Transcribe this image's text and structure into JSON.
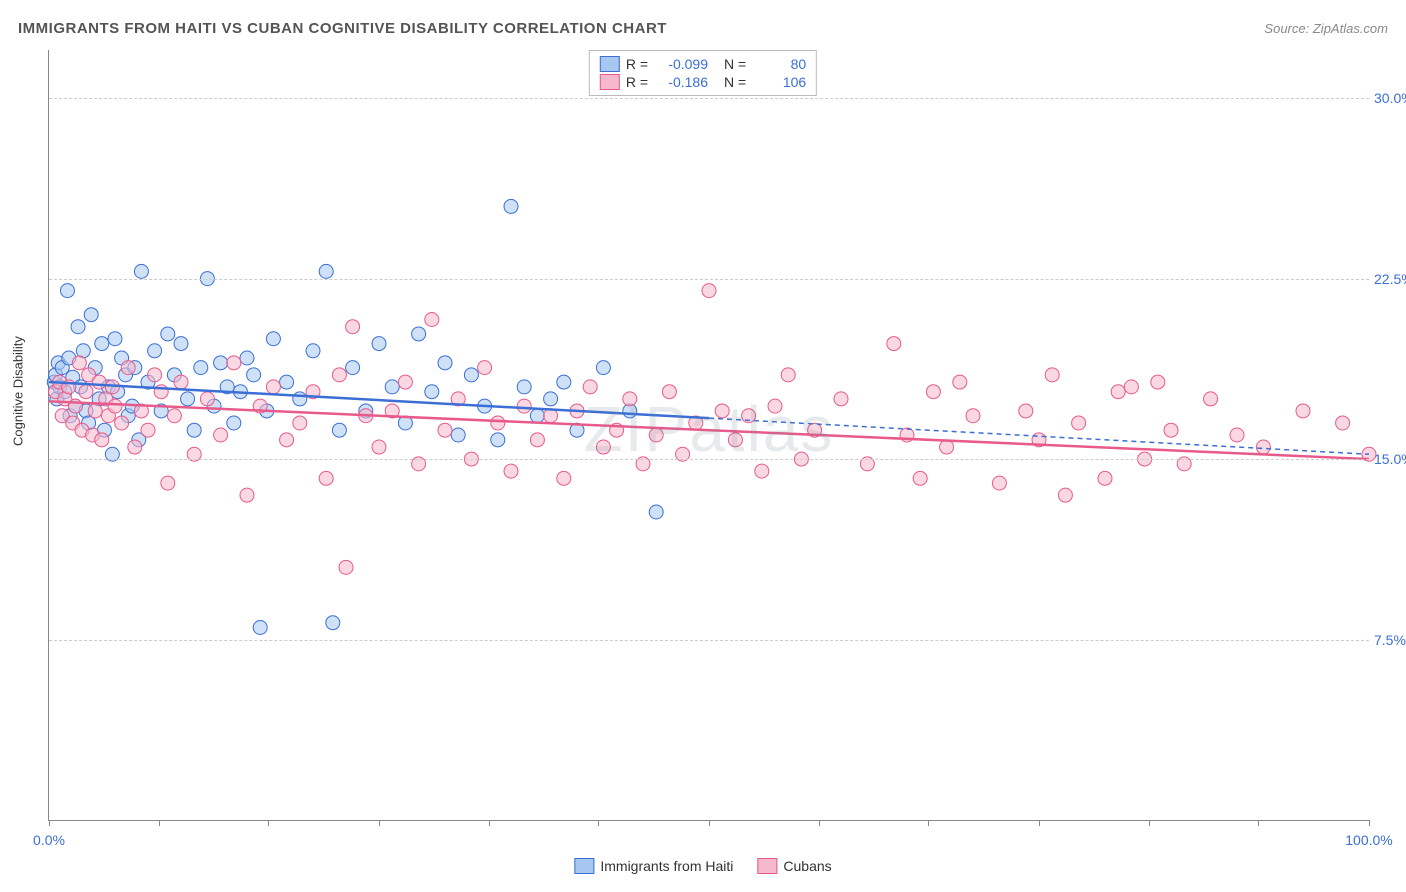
{
  "header": {
    "title": "IMMIGRANTS FROM HAITI VS CUBAN COGNITIVE DISABILITY CORRELATION CHART",
    "source_label": "Source:",
    "source_name": "ZipAtlas.com"
  },
  "watermark": "ZIPatlas",
  "chart": {
    "type": "scatter",
    "xlim": [
      0,
      100
    ],
    "ylim": [
      0,
      32
    ],
    "yticks": [
      7.5,
      15.0,
      22.5,
      30.0
    ],
    "ytick_labels": [
      "7.5%",
      "15.0%",
      "22.5%",
      "30.0%"
    ],
    "xtick_positions": [
      0,
      8.3,
      16.6,
      25,
      33.3,
      41.6,
      50,
      58.3,
      66.6,
      75,
      83.3,
      91.6,
      100
    ],
    "xaxis_end_labels": {
      "left": "0.0%",
      "right": "100.0%"
    },
    "yaxis_title": "Cognitive Disability",
    "background_color": "#ffffff",
    "grid_color": "#cccccc",
    "axis_color": "#888888",
    "label_color": "#3b6fd6",
    "marker_radius": 7,
    "marker_opacity": 0.55,
    "series": [
      {
        "name": "Immigrants from Haiti",
        "color_fill": "#a6c8f0",
        "color_stroke": "#3b6fd6",
        "R": "-0.099",
        "N": "80",
        "trend": {
          "y_at_x0": 18.2,
          "y_at_x100": 15.2,
          "solid_until_x": 50
        },
        "points": [
          [
            0.4,
            18.2
          ],
          [
            0.5,
            18.5
          ],
          [
            0.6,
            17.5
          ],
          [
            0.7,
            19.0
          ],
          [
            0.8,
            18.0
          ],
          [
            1.0,
            18.8
          ],
          [
            1.2,
            17.8
          ],
          [
            1.4,
            22.0
          ],
          [
            1.5,
            19.2
          ],
          [
            1.6,
            16.8
          ],
          [
            1.8,
            18.4
          ],
          [
            2.0,
            17.2
          ],
          [
            2.2,
            20.5
          ],
          [
            2.4,
            18.0
          ],
          [
            2.6,
            19.5
          ],
          [
            2.8,
            17.0
          ],
          [
            3.0,
            16.5
          ],
          [
            3.2,
            21.0
          ],
          [
            3.5,
            18.8
          ],
          [
            3.8,
            17.5
          ],
          [
            4.0,
            19.8
          ],
          [
            4.2,
            16.2
          ],
          [
            4.5,
            18.0
          ],
          [
            4.8,
            15.2
          ],
          [
            5.0,
            20.0
          ],
          [
            5.2,
            17.8
          ],
          [
            5.5,
            19.2
          ],
          [
            5.8,
            18.5
          ],
          [
            6.0,
            16.8
          ],
          [
            6.3,
            17.2
          ],
          [
            6.5,
            18.8
          ],
          [
            6.8,
            15.8
          ],
          [
            7.0,
            22.8
          ],
          [
            7.5,
            18.2
          ],
          [
            8.0,
            19.5
          ],
          [
            8.5,
            17.0
          ],
          [
            9.0,
            20.2
          ],
          [
            9.5,
            18.5
          ],
          [
            10.0,
            19.8
          ],
          [
            10.5,
            17.5
          ],
          [
            11.0,
            16.2
          ],
          [
            11.5,
            18.8
          ],
          [
            12.0,
            22.5
          ],
          [
            12.5,
            17.2
          ],
          [
            13.0,
            19.0
          ],
          [
            13.5,
            18.0
          ],
          [
            14.0,
            16.5
          ],
          [
            14.5,
            17.8
          ],
          [
            15.0,
            19.2
          ],
          [
            15.5,
            18.5
          ],
          [
            16.0,
            8.0
          ],
          [
            16.5,
            17.0
          ],
          [
            17.0,
            20.0
          ],
          [
            18.0,
            18.2
          ],
          [
            19.0,
            17.5
          ],
          [
            20.0,
            19.5
          ],
          [
            21.0,
            22.8
          ],
          [
            21.5,
            8.2
          ],
          [
            22.0,
            16.2
          ],
          [
            23.0,
            18.8
          ],
          [
            24.0,
            17.0
          ],
          [
            25.0,
            19.8
          ],
          [
            26.0,
            18.0
          ],
          [
            27.0,
            16.5
          ],
          [
            28.0,
            20.2
          ],
          [
            29.0,
            17.8
          ],
          [
            30.0,
            19.0
          ],
          [
            31.0,
            16.0
          ],
          [
            32.0,
            18.5
          ],
          [
            33.0,
            17.2
          ],
          [
            34.0,
            15.8
          ],
          [
            35.0,
            25.5
          ],
          [
            36.0,
            18.0
          ],
          [
            37.0,
            16.8
          ],
          [
            38.0,
            17.5
          ],
          [
            39.0,
            18.2
          ],
          [
            40.0,
            16.2
          ],
          [
            42.0,
            18.8
          ],
          [
            44.0,
            17.0
          ],
          [
            46.0,
            12.8
          ]
        ]
      },
      {
        "name": "Cubans",
        "color_fill": "#f5b8cc",
        "color_stroke": "#e85a8a",
        "R": "-0.186",
        "N": "106",
        "trend": {
          "y_at_x0": 17.4,
          "y_at_x100": 15.0,
          "solid_until_x": 100
        },
        "points": [
          [
            0.5,
            17.8
          ],
          [
            0.8,
            18.2
          ],
          [
            1.0,
            16.8
          ],
          [
            1.2,
            17.5
          ],
          [
            1.5,
            18.0
          ],
          [
            1.8,
            16.5
          ],
          [
            2.0,
            17.2
          ],
          [
            2.3,
            19.0
          ],
          [
            2.5,
            16.2
          ],
          [
            2.8,
            17.8
          ],
          [
            3.0,
            18.5
          ],
          [
            3.3,
            16.0
          ],
          [
            3.5,
            17.0
          ],
          [
            3.8,
            18.2
          ],
          [
            4.0,
            15.8
          ],
          [
            4.3,
            17.5
          ],
          [
            4.5,
            16.8
          ],
          [
            4.8,
            18.0
          ],
          [
            5.0,
            17.2
          ],
          [
            5.5,
            16.5
          ],
          [
            6.0,
            18.8
          ],
          [
            6.5,
            15.5
          ],
          [
            7.0,
            17.0
          ],
          [
            7.5,
            16.2
          ],
          [
            8.0,
            18.5
          ],
          [
            8.5,
            17.8
          ],
          [
            9.0,
            14.0
          ],
          [
            9.5,
            16.8
          ],
          [
            10.0,
            18.2
          ],
          [
            11.0,
            15.2
          ],
          [
            12.0,
            17.5
          ],
          [
            13.0,
            16.0
          ],
          [
            14.0,
            19.0
          ],
          [
            15.0,
            13.5
          ],
          [
            16.0,
            17.2
          ],
          [
            17.0,
            18.0
          ],
          [
            18.0,
            15.8
          ],
          [
            19.0,
            16.5
          ],
          [
            20.0,
            17.8
          ],
          [
            21.0,
            14.2
          ],
          [
            22.0,
            18.5
          ],
          [
            22.5,
            10.5
          ],
          [
            23.0,
            20.5
          ],
          [
            24.0,
            16.8
          ],
          [
            25.0,
            15.5
          ],
          [
            26.0,
            17.0
          ],
          [
            27.0,
            18.2
          ],
          [
            28.0,
            14.8
          ],
          [
            29.0,
            20.8
          ],
          [
            30.0,
            16.2
          ],
          [
            31.0,
            17.5
          ],
          [
            32.0,
            15.0
          ],
          [
            33.0,
            18.8
          ],
          [
            34.0,
            16.5
          ],
          [
            35.0,
            14.5
          ],
          [
            36.0,
            17.2
          ],
          [
            37.0,
            15.8
          ],
          [
            38.0,
            16.8
          ],
          [
            39.0,
            14.2
          ],
          [
            40.0,
            17.0
          ],
          [
            41.0,
            18.0
          ],
          [
            42.0,
            15.5
          ],
          [
            43.0,
            16.2
          ],
          [
            44.0,
            17.5
          ],
          [
            45.0,
            14.8
          ],
          [
            46.0,
            16.0
          ],
          [
            47.0,
            17.8
          ],
          [
            48.0,
            15.2
          ],
          [
            49.0,
            16.5
          ],
          [
            50.0,
            22.0
          ],
          [
            51.0,
            17.0
          ],
          [
            52.0,
            15.8
          ],
          [
            53.0,
            16.8
          ],
          [
            54.0,
            14.5
          ],
          [
            55.0,
            17.2
          ],
          [
            56.0,
            18.5
          ],
          [
            57.0,
            15.0
          ],
          [
            58.0,
            16.2
          ],
          [
            60.0,
            17.5
          ],
          [
            62.0,
            14.8
          ],
          [
            64.0,
            19.8
          ],
          [
            65.0,
            16.0
          ],
          [
            66.0,
            14.2
          ],
          [
            67.0,
            17.8
          ],
          [
            68.0,
            15.5
          ],
          [
            69.0,
            18.2
          ],
          [
            70.0,
            16.8
          ],
          [
            72.0,
            14.0
          ],
          [
            74.0,
            17.0
          ],
          [
            75.0,
            15.8
          ],
          [
            76.0,
            18.5
          ],
          [
            77.0,
            13.5
          ],
          [
            78.0,
            16.5
          ],
          [
            80.0,
            14.2
          ],
          [
            81.0,
            17.8
          ],
          [
            82.0,
            18.0
          ],
          [
            83.0,
            15.0
          ],
          [
            84.0,
            18.2
          ],
          [
            85.0,
            16.2
          ],
          [
            86.0,
            14.8
          ],
          [
            88.0,
            17.5
          ],
          [
            90.0,
            16.0
          ],
          [
            92.0,
            15.5
          ],
          [
            95.0,
            17.0
          ],
          [
            98.0,
            16.5
          ],
          [
            100.0,
            15.2
          ]
        ]
      }
    ]
  }
}
